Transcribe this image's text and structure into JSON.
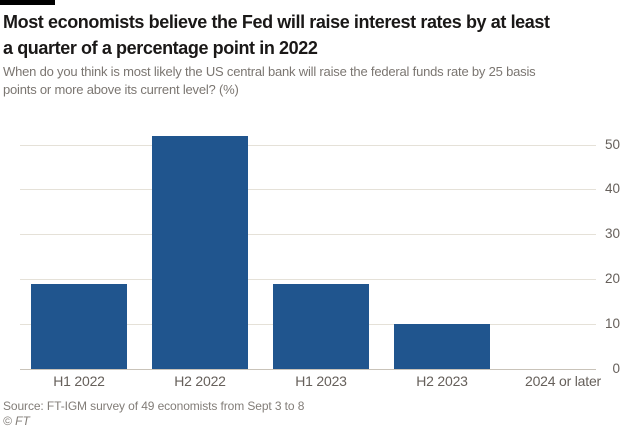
{
  "header": {
    "title_lines": [
      "Most economists believe the Fed will raise interest rates by at least",
      "a quarter of a percentage point in 2022"
    ],
    "subtitle_lines": [
      "When do you think is most likely the US central bank will raise the federal funds rate by 25 basis",
      "points or more above its current level? (%)"
    ]
  },
  "chart_data": {
    "type": "bar",
    "title": "Most economists believe the Fed will raise interest rates by at least a quarter of a percentage point in 2022",
    "subtitle": "When do you think is most likely the US central bank will raise the federal funds rate by 25 basis points or more above its current level? (%)",
    "categories": [
      "H1 2022",
      "H2 2022",
      "H1 2023",
      "H2 2023",
      "2024 or later"
    ],
    "values": [
      19,
      52,
      19,
      10,
      0
    ],
    "xlabel": "",
    "ylabel": "",
    "ylim": [
      0,
      52
    ],
    "yticks": [
      0,
      10,
      20,
      30,
      40,
      50
    ],
    "ytick_side": "right",
    "grid": true,
    "bar_color": "#20558e"
  },
  "footer": {
    "source": "Source: FT-IGM survey of 49 economists from Sept 3 to 8",
    "copyright": "© FT"
  },
  "colors": {
    "bar": "#20558e",
    "title_text": "#1a1817",
    "muted_text": "#7b7671",
    "axis_text": "#66605b",
    "gridline": "#e5e1d8",
    "baseline": "#c9c3b9",
    "top_rule": "#000000",
    "background": "#ffffff"
  }
}
